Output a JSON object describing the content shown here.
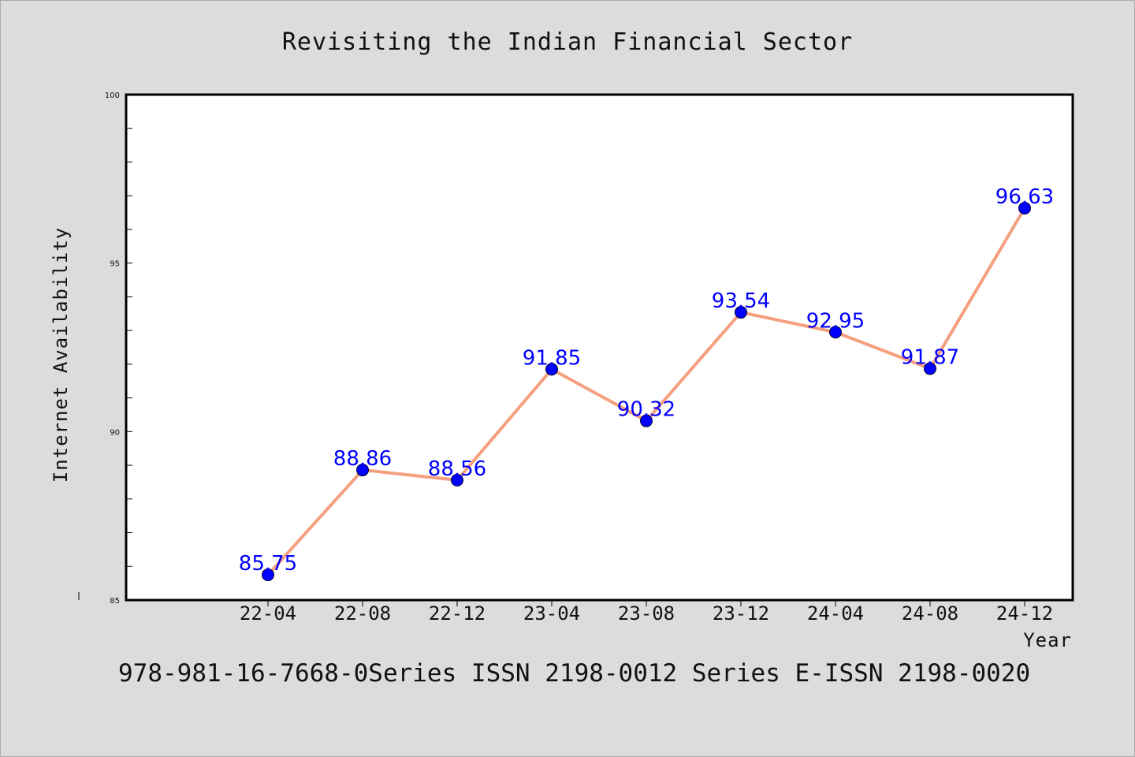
{
  "chart_data": {
    "type": "line",
    "title": "Revisiting the Indian Financial Sector",
    "xlabel": "Year",
    "ylabel": "Internet Availability",
    "categories": [
      "22-04",
      "22-08",
      "22-12",
      "23-04",
      "23-08",
      "23-12",
      "24-04",
      "24-08",
      "24-12"
    ],
    "series": [
      {
        "values": [
          85.75,
          88.86,
          88.56,
          91.85,
          90.32,
          93.54,
          92.95,
          91.87,
          96.63
        ]
      }
    ],
    "data_labels": [
      "85.75",
      "88.86",
      "88.56",
      "91.85",
      "90.32",
      "93.54",
      "92.95",
      "91.87",
      "96.63"
    ],
    "ylim": [
      85,
      100
    ],
    "y_ticks": [
      85,
      90,
      95,
      100
    ],
    "y_tick_labels": [
      "85",
      "90",
      "95",
      "100"
    ],
    "grid": false,
    "legend": "none",
    "line_color": "#f4a07f",
    "marker_color": "#0000ff",
    "label_color": "#0000ff",
    "background_color": "#dcdcdc",
    "plot_background_color": "#ffffff"
  },
  "footer": {
    "text": "978-981-16-7668-0Series ISSN 2198-0012 Series E-ISSN 2198-0020"
  }
}
